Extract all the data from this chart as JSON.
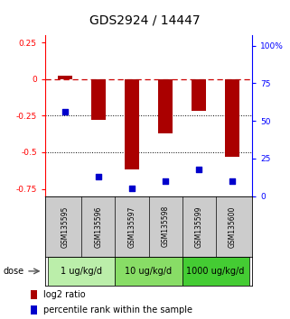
{
  "title": "GDS2924 / 14447",
  "samples": [
    "GSM135595",
    "GSM135596",
    "GSM135597",
    "GSM135598",
    "GSM135599",
    "GSM135600"
  ],
  "log2_ratio": [
    0.02,
    -0.28,
    -0.62,
    -0.37,
    -0.22,
    -0.53
  ],
  "percentile_rank": [
    56,
    13,
    5,
    10,
    18,
    10
  ],
  "ylim_left": [
    -0.8,
    0.3
  ],
  "ylim_right": [
    0,
    107
  ],
  "yticks_left": [
    0.25,
    0,
    -0.25,
    -0.5,
    -0.75
  ],
  "yticks_left_labels": [
    "0.25",
    "0",
    "-0.25",
    "-0.5",
    "-0.75"
  ],
  "yticks_right": [
    100,
    75,
    50,
    25,
    0
  ],
  "yticks_right_labels": [
    "100%",
    "75",
    "50",
    "25",
    "0"
  ],
  "hlines": [
    -0.25,
    -0.5
  ],
  "dose_groups": [
    {
      "label": "1 ug/kg/d",
      "indices": [
        0,
        1
      ],
      "color": "#bbeeaa"
    },
    {
      "label": "10 ug/kg/d",
      "indices": [
        2,
        3
      ],
      "color": "#88dd66"
    },
    {
      "label": "1000 ug/kg/d",
      "indices": [
        4,
        5
      ],
      "color": "#44cc33"
    }
  ],
  "bar_color": "#aa0000",
  "square_color": "#0000cc",
  "bar_width": 0.45,
  "dose_label": "dose",
  "legend_log2": "log2 ratio",
  "legend_pct": "percentile rank within the sample",
  "background_color": "#ffffff",
  "title_fontsize": 10,
  "tick_fontsize": 6.5,
  "sample_fontsize": 5.5,
  "dose_fontsize": 7,
  "legend_fontsize": 7
}
